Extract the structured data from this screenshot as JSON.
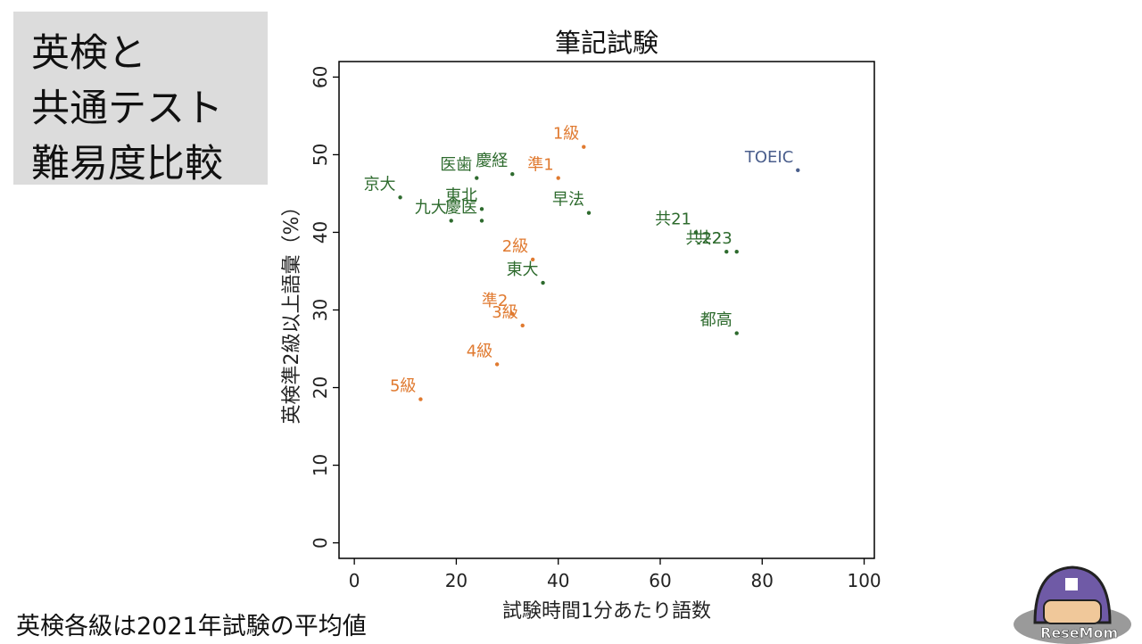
{
  "slide": {
    "heading_lines": [
      "英検と",
      "共通テスト",
      "難易度比較"
    ],
    "footnote": "英検各級は2021年試験の平均値",
    "logo_text": "ReseMom"
  },
  "chart_data": {
    "type": "scatter",
    "title": "筆記試験",
    "xlabel": "試験時間1分あたり語数",
    "ylabel": "英検準2級以上語彙（%）",
    "xlim": [
      -3,
      102
    ],
    "ylim": [
      -2,
      62
    ],
    "xticks": [
      0,
      20,
      40,
      60,
      80,
      100
    ],
    "yticks": [
      0,
      10,
      20,
      30,
      40,
      50,
      60
    ],
    "grid": false,
    "series": [
      {
        "color": "#e07a30",
        "points": [
          {
            "label": "1級",
            "x": 45,
            "y": 51
          },
          {
            "label": "準1",
            "x": 40,
            "y": 47
          },
          {
            "label": "2級",
            "x": 35,
            "y": 36.5
          },
          {
            "label": "準2",
            "x": 31,
            "y": 29.5
          },
          {
            "label": "3級",
            "x": 33,
            "y": 28
          },
          {
            "label": "4級",
            "x": 28,
            "y": 23
          },
          {
            "label": "5級",
            "x": 13,
            "y": 18.5
          }
        ]
      },
      {
        "color": "#2e6b2e",
        "points": [
          {
            "label": "京大",
            "x": 9,
            "y": 44.5
          },
          {
            "label": "医歯",
            "x": 24,
            "y": 47
          },
          {
            "label": "慶経",
            "x": 31,
            "y": 47.5
          },
          {
            "label": "東北",
            "x": 25,
            "y": 43
          },
          {
            "label": "九大",
            "x": 19,
            "y": 41.5
          },
          {
            "label": "慶医",
            "x": 25,
            "y": 41.5
          },
          {
            "label": "早法",
            "x": 46,
            "y": 42.5
          },
          {
            "label": "東大",
            "x": 37,
            "y": 33.5
          },
          {
            "label": "共21",
            "x": 67,
            "y": 40
          },
          {
            "label": "共22",
            "x": 73,
            "y": 37.5
          },
          {
            "label": "共23",
            "x": 75,
            "y": 37.5
          },
          {
            "label": "都高",
            "x": 75,
            "y": 27
          }
        ]
      },
      {
        "color": "#4a5e8c",
        "points": [
          {
            "label": "TOEIC",
            "x": 87,
            "y": 48
          }
        ]
      }
    ]
  }
}
